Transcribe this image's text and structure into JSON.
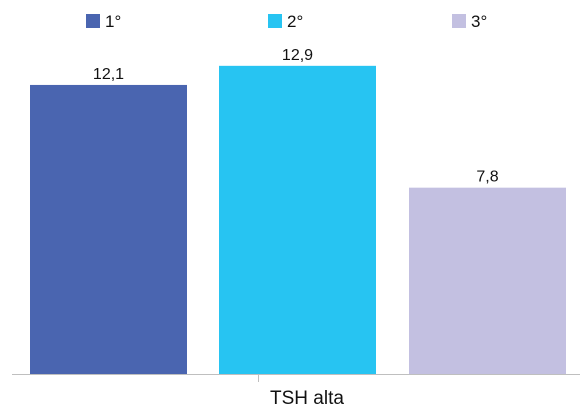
{
  "chart_data": {
    "type": "bar",
    "title": "",
    "xlabel": "",
    "ylabel": "",
    "categories": [
      "TSH alta"
    ],
    "series": [
      {
        "name": "1°",
        "values": [
          12.1
        ],
        "label": "12,1",
        "color": "#4a65b0"
      },
      {
        "name": "2°",
        "values": [
          12.9
        ],
        "label": "12,9",
        "color": "#27c4f2"
      },
      {
        "name": "3°",
        "values": [
          7.8
        ],
        "label": "7,8",
        "color": "#c3c0e1"
      }
    ],
    "ylim": [
      0,
      14.4
    ],
    "grid": false,
    "legend": "top"
  }
}
